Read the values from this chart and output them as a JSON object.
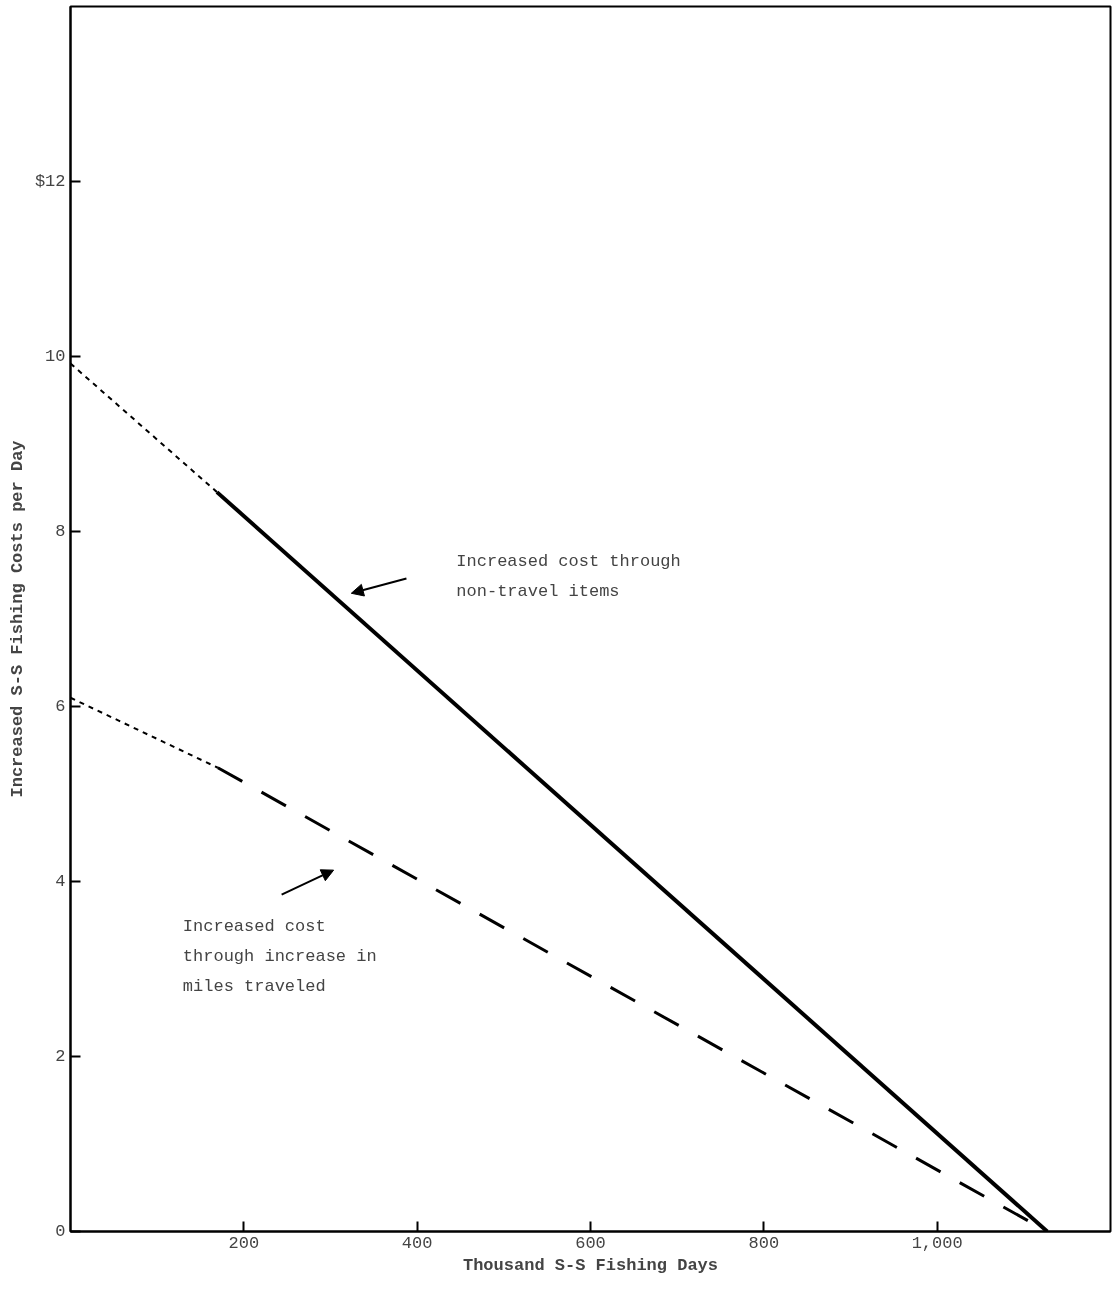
{
  "chart_data": {
    "type": "line",
    "xlabel": "Thousand S-S Fishing Days",
    "ylabel": "Increased S-S Fishing Costs per Day",
    "xlim": [
      0,
      1200
    ],
    "ylim": [
      0,
      14
    ],
    "xticks": [
      200,
      400,
      600,
      800,
      {
        "value": 1000,
        "label": "1,000"
      }
    ],
    "yticks": [
      0,
      2,
      4,
      6,
      8,
      10,
      {
        "value": 12,
        "label": "$12"
      }
    ],
    "grid": false,
    "marker": "none",
    "series": [
      {
        "color": "#000000",
        "line_style": "dotted",
        "x": [
          0,
          169
        ],
        "values": [
          9.92,
          8.45
        ]
      },
      {
        "color": "#000000",
        "line_style": "solid",
        "x": [
          169,
          1127
        ],
        "values": [
          8.45,
          0
        ]
      },
      {
        "color": "#000000",
        "line_style": "dotted",
        "x": [
          0,
          170
        ],
        "values": [
          6.1,
          5.3
        ]
      },
      {
        "color": "#000000",
        "line_style": "dashed",
        "x": [
          170,
          1127
        ],
        "values": [
          5.3,
          0
        ]
      }
    ],
    "annotations": [
      "Increased cost through\nnon-travel items",
      "Increased cost\nthrough increase in\nmiles traveled"
    ]
  }
}
